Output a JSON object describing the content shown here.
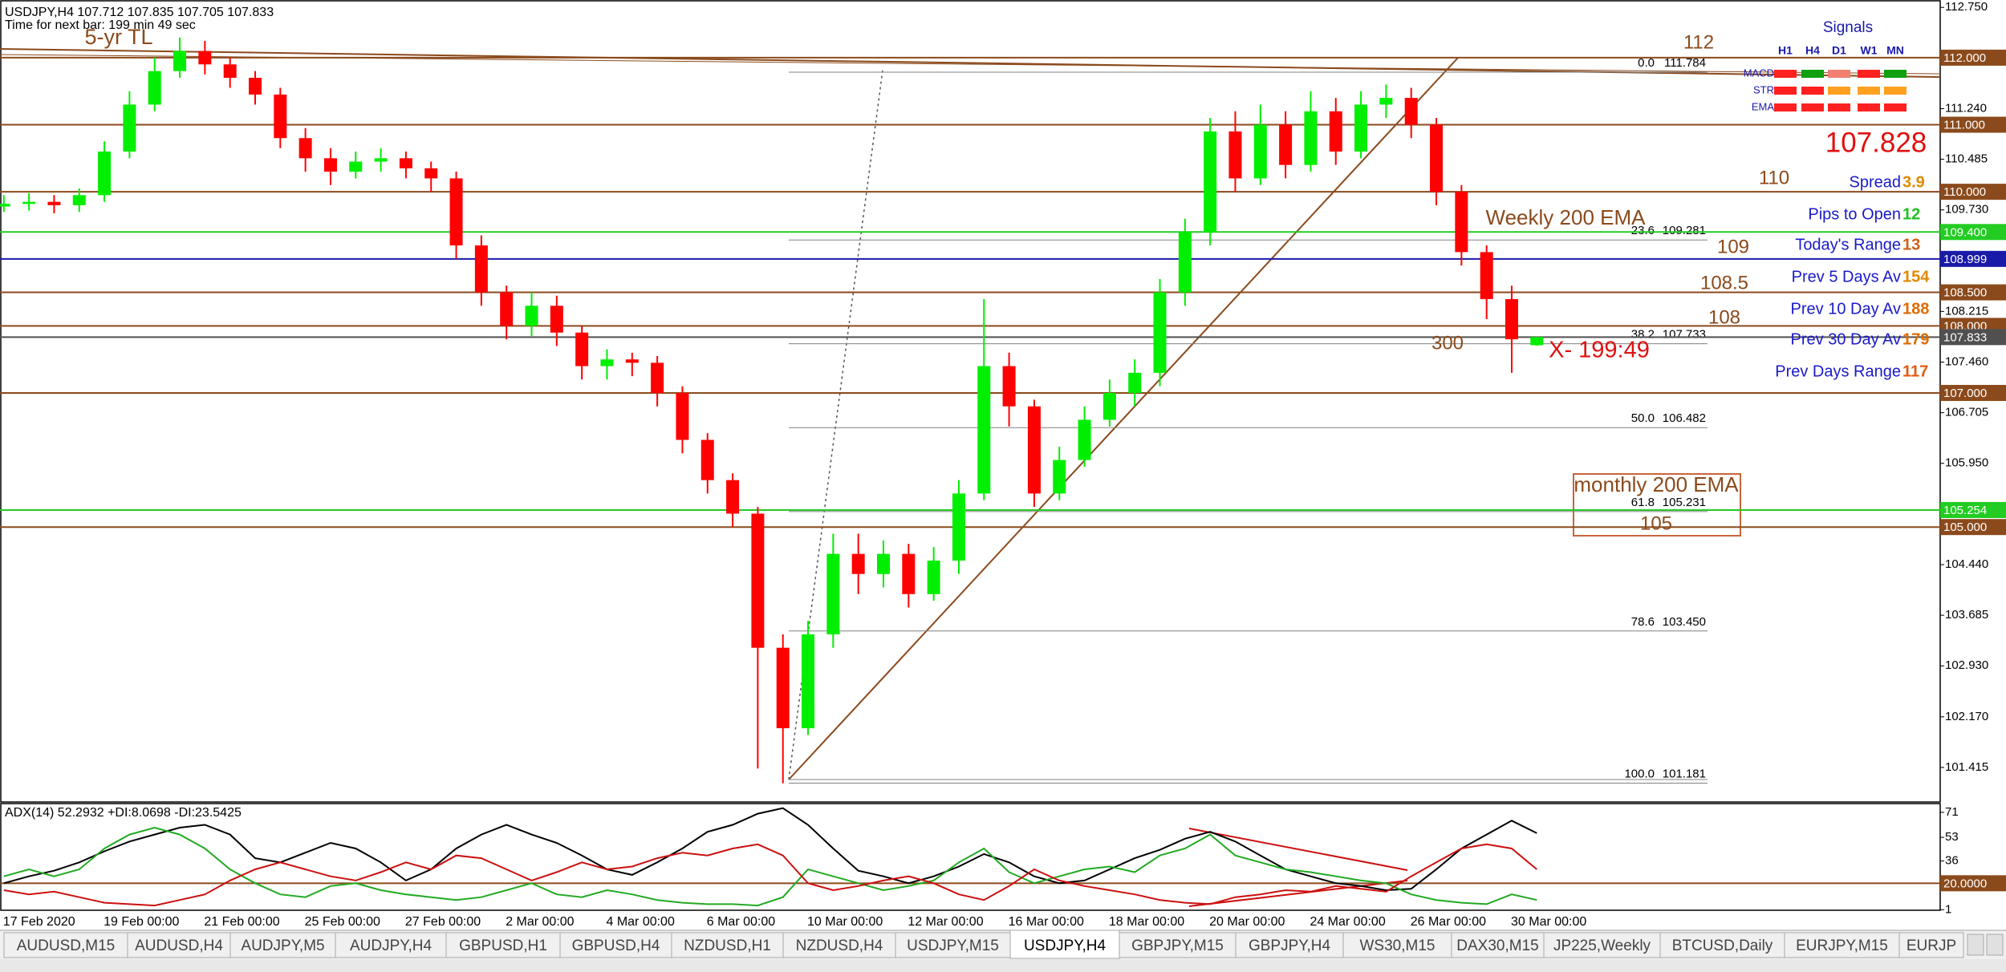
{
  "header": {
    "symbol_line": "USDJPY,H4  107.712 107.835 107.705 107.833",
    "timer": "Time for next bar: 199 min 49 sec"
  },
  "chart_data": [
    {
      "type": "candlestick",
      "categories": [
        "17 Feb 2020",
        null,
        null,
        null,
        "19 Feb 00:00",
        null,
        null,
        null,
        "21 Feb 00:00",
        null,
        null,
        null,
        "25 Feb 00:00",
        null,
        null,
        null,
        "27 Feb 00:00",
        null,
        null,
        null,
        "2 Mar 00:00",
        null,
        null,
        null,
        "4 Mar 00:00",
        null,
        null,
        null,
        "6 Mar 00:00",
        null,
        null,
        null,
        "10 Mar 00:00",
        null,
        null,
        null,
        "12 Mar 00:00",
        null,
        null,
        null,
        "16 Mar 00:00",
        null,
        null,
        null,
        "18 Mar 00:00",
        null,
        null,
        null,
        "20 Mar 00:00",
        null,
        null,
        null,
        "24 Mar 00:00",
        null,
        null,
        null,
        "26 Mar 00:00",
        null,
        null,
        null,
        "30 Mar 00:00",
        null
      ],
      "open": [
        109.78,
        109.82,
        109.85,
        109.8,
        109.95,
        110.6,
        111.3,
        111.8,
        112.1,
        111.9,
        111.7,
        111.45,
        110.8,
        110.5,
        110.3,
        110.45,
        110.5,
        110.35,
        110.2,
        109.2,
        108.5,
        108.0,
        108.3,
        107.9,
        107.4,
        107.5,
        107.45,
        107.0,
        106.3,
        105.7,
        105.2,
        103.2,
        102.0,
        103.4,
        104.6,
        104.3,
        104.6,
        104.0,
        104.5,
        105.5,
        107.4,
        106.8,
        105.5,
        106.0,
        106.6,
        107.0,
        107.3,
        108.5,
        109.4,
        110.9,
        110.2,
        111.0,
        110.4,
        111.2,
        110.6,
        111.3,
        111.4,
        111.0,
        110.0,
        109.1,
        108.4,
        107.712
      ],
      "high": [
        109.95,
        109.98,
        109.95,
        110.05,
        110.75,
        111.5,
        112.0,
        112.3,
        112.25,
        112.0,
        111.8,
        111.55,
        110.95,
        110.65,
        110.6,
        110.65,
        110.6,
        110.45,
        110.3,
        109.35,
        108.6,
        108.5,
        108.45,
        108.0,
        107.65,
        107.6,
        107.55,
        107.1,
        106.4,
        105.8,
        105.3,
        103.4,
        103.6,
        104.9,
        104.9,
        104.8,
        104.75,
        104.7,
        105.7,
        108.4,
        107.6,
        106.9,
        106.2,
        106.8,
        107.2,
        107.5,
        108.7,
        109.6,
        111.1,
        111.2,
        111.3,
        111.2,
        111.5,
        111.4,
        111.5,
        111.6,
        111.55,
        111.1,
        110.1,
        109.2,
        108.6,
        107.835
      ],
      "low": [
        109.7,
        109.72,
        109.68,
        109.7,
        109.85,
        110.5,
        111.2,
        111.7,
        111.75,
        111.55,
        111.3,
        110.65,
        110.3,
        110.1,
        110.2,
        110.3,
        110.2,
        110.0,
        109.0,
        108.3,
        107.8,
        107.85,
        107.7,
        107.2,
        107.2,
        107.25,
        106.8,
        106.1,
        105.5,
        105.0,
        101.4,
        101.18,
        101.9,
        103.2,
        104.0,
        104.1,
        103.8,
        103.9,
        104.3,
        105.4,
        106.5,
        105.3,
        105.4,
        105.9,
        106.5,
        106.8,
        107.1,
        108.3,
        109.2,
        110.0,
        110.1,
        110.2,
        110.3,
        110.4,
        110.5,
        111.1,
        110.8,
        109.8,
        108.9,
        108.1,
        107.3,
        107.705
      ],
      "close": [
        109.82,
        109.85,
        109.8,
        109.95,
        110.6,
        111.3,
        111.8,
        112.1,
        111.9,
        111.7,
        111.45,
        110.8,
        110.5,
        110.3,
        110.45,
        110.5,
        110.35,
        110.2,
        109.2,
        108.5,
        108.0,
        108.3,
        107.9,
        107.4,
        107.5,
        107.45,
        107.0,
        106.3,
        105.7,
        105.2,
        103.2,
        102.0,
        103.4,
        104.6,
        104.3,
        104.6,
        104.0,
        104.5,
        105.5,
        107.4,
        106.8,
        105.5,
        106.0,
        106.6,
        107.0,
        107.3,
        108.5,
        109.4,
        110.9,
        110.2,
        111.0,
        110.4,
        111.2,
        110.6,
        111.3,
        111.4,
        111.0,
        110.0,
        109.1,
        108.4,
        107.8,
        107.833
      ],
      "up_color": "#00ee00",
      "down_color": "#ff0000",
      "ylim": [
        100.9,
        112.86
      ],
      "yticks": [
        {
          "value": 112.75,
          "label": "112.750"
        },
        {
          "value": 111.24,
          "label": "111.240"
        },
        110.485,
        {
          "value": 109.73,
          "label": "109.730"
        },
        108.215,
        {
          "value": 107.46,
          "label": "107.460"
        },
        106.705,
        {
          "value": 105.95,
          "label": "105.950"
        },
        {
          "value": 104.44,
          "label": "104.440"
        },
        103.685,
        {
          "value": 102.93,
          "label": "102.930"
        },
        {
          "value": 102.17,
          "label": "102.170"
        },
        101.415
      ],
      "levels": [
        {
          "price": {
            "value": 112,
            "label": "112.000"
          },
          "color": "#8b4a1c"
        },
        {
          "price": {
            "value": 111,
            "label": "111.000"
          },
          "color": "#8b4a1c"
        },
        {
          "price": {
            "value": 110,
            "label": "110.000"
          },
          "color": "#8b4a1c"
        },
        {
          "price": {
            "value": 109.4,
            "label": "109.400"
          },
          "color": "#22cc22"
        },
        {
          "price": 108.999,
          "color": "#1a1aa8"
        },
        {
          "price": {
            "value": 108.5,
            "label": "108.500"
          },
          "color": "#8b4a1c"
        },
        {
          "price": {
            "value": 108,
            "label": "108.000"
          },
          "color": "#8b4a1c"
        },
        {
          "price": 107.833,
          "color": "#505050"
        },
        {
          "price": {
            "value": 107,
            "label": "107.000"
          },
          "color": "#8b4a1c"
        },
        {
          "price": 105.254,
          "color": "#22cc22"
        },
        {
          "price": {
            "value": 105,
            "label": "105.000"
          },
          "color": "#8b4a1c"
        }
      ],
      "fib": [
        {
          "label": "0.0",
          "price": 111.784
        },
        {
          "label": "23.6",
          "price": 109.281
        },
        {
          "label": "38.2",
          "price": 107.733
        },
        {
          "label": "50.0",
          "price": 106.482
        },
        {
          "label": "61.8",
          "price": 105.231
        },
        {
          "label": "78.6",
          "price": {
            "value": 103.45,
            "label": "103.450"
          }
        },
        {
          "label": "100.0",
          "price": 101.181
        }
      ],
      "annotations": [
        {
          "text": "5-yr TL",
          "color": "#8b4a1c"
        },
        {
          "text": "112",
          "color": "#8b4a1c"
        },
        {
          "text": "110",
          "color": "#8b4a1c"
        },
        {
          "text": "109",
          "color": "#8b4a1c"
        },
        {
          "text": "108.5",
          "color": "#8b4a1c"
        },
        {
          "text": "108",
          "color": "#8b4a1c"
        },
        {
          "text": "300",
          "color": "#8b4a1c"
        },
        {
          "text": "Weekly 200 EMA",
          "color": "#8b4a1c"
        },
        {
          "text": "monthly 200 EMA",
          "color": "#8b4a1c"
        },
        {
          "text": "105",
          "color": "#8b4a1c"
        },
        {
          "text": "X- 199:49",
          "color": "#e01010"
        }
      ]
    },
    {
      "type": "line",
      "title": "ADX(14) 52.2932 +DI:8.0698 -DI:23.5425",
      "ylim": [
        0.6,
        76.7
      ],
      "yticks": [
        71,
        53,
        36,
        1
      ],
      "levels": [
        {
          "price": {
            "value": 20,
            "label": "20.0000"
          },
          "color": "#8b4a1c"
        }
      ],
      "series": [
        {
          "color": "#000000",
          "values": [
            20,
            25,
            29,
            35,
            43,
            50,
            55,
            60,
            62,
            55,
            38,
            35,
            42,
            49,
            45,
            35,
            22,
            30,
            45,
            55,
            62,
            55,
            49,
            40,
            30,
            26,
            35,
            45,
            57,
            62,
            70,
            74,
            62,
            45,
            29,
            25,
            20,
            25,
            32,
            41,
            35,
            25,
            20,
            22,
            30,
            38,
            44,
            52,
            57,
            50,
            40,
            30,
            25,
            20,
            18,
            15,
            16,
            30,
            45,
            55,
            65,
            56
          ]
        },
        {
          "color": "#22aa22",
          "values": [
            25,
            30,
            25,
            30,
            45,
            55,
            60,
            55,
            45,
            30,
            20,
            12,
            10,
            18,
            20,
            15,
            12,
            10,
            8,
            10,
            15,
            20,
            12,
            10,
            15,
            12,
            8,
            6,
            5,
            5,
            4,
            10,
            30,
            25,
            20,
            15,
            18,
            22,
            35,
            45,
            28,
            20,
            25,
            30,
            32,
            28,
            40,
            45,
            55,
            40,
            35,
            30,
            28,
            25,
            22,
            20,
            12,
            8,
            6,
            5,
            12,
            8
          ]
        },
        {
          "color": "#cc1010",
          "values": [
            15,
            12,
            14,
            10,
            6,
            5,
            4,
            8,
            12,
            22,
            30,
            35,
            30,
            25,
            22,
            28,
            35,
            30,
            40,
            38,
            30,
            22,
            28,
            35,
            30,
            32,
            38,
            42,
            40,
            45,
            48,
            40,
            20,
            15,
            18,
            22,
            25,
            20,
            12,
            8,
            18,
            30,
            22,
            18,
            15,
            12,
            8,
            6,
            5,
            10,
            12,
            15,
            14,
            18,
            16,
            14,
            25,
            35,
            45,
            48,
            45,
            30
          ]
        }
      ]
    }
  ],
  "signals": {
    "title": "Signals",
    "columns": [
      "H1",
      "H4",
      "D1",
      "W1",
      "MN"
    ],
    "rows": [
      {
        "name": "MACD",
        "colors": [
          "#ff2020",
          "#10a010",
          "#f08070",
          "#ff2020",
          "#10a010"
        ]
      },
      {
        "name": "STR",
        "colors": [
          "#ff2020",
          "#ff2020",
          "#ffa020",
          "#ffa020",
          "#ffa020"
        ]
      },
      {
        "name": "EMA",
        "colors": [
          "#ff2020",
          "#ff2020",
          "#ff2020",
          "#ff2020",
          "#ff2020"
        ]
      }
    ]
  },
  "price": 107.828,
  "stats": [
    {
      "label": "Spread",
      "value": 3.9,
      "color": "#e08a00"
    },
    {
      "label": "Pips to Open",
      "value": 12,
      "color": "#20c020"
    },
    {
      "label": "Today's Range",
      "value": 13,
      "color": "#d0601a"
    },
    {
      "label": "Prev 5 Days Av",
      "value": 154,
      "color": "#e08a00"
    },
    {
      "label": "Prev 10 Day Av",
      "value": 188,
      "color": "#e06a00"
    },
    {
      "label": "Prev 30 Day Av",
      "value": 179,
      "color": "#e06a00"
    },
    {
      "label": "Prev Days Range",
      "value": 117,
      "color": "#e05a10"
    }
  ],
  "tabs": [
    "AUDUSD,M15",
    "AUDUSD,H4",
    "AUDJPY,M5",
    "AUDJPY,H4",
    "GBPUSD,H1",
    "GBPUSD,H4",
    "NZDUSD,H1",
    "NZDUSD,H4",
    "USDJPY,M15",
    "USDJPY,H4",
    "GBPJPY,M15",
    "GBPJPY,H4",
    "WS30,M15",
    "DAX30,M15",
    "JP225,Weekly",
    "BTCUSD,Daily",
    "EURJPY,M15",
    "EURJP"
  ],
  "active_tab": 9
}
